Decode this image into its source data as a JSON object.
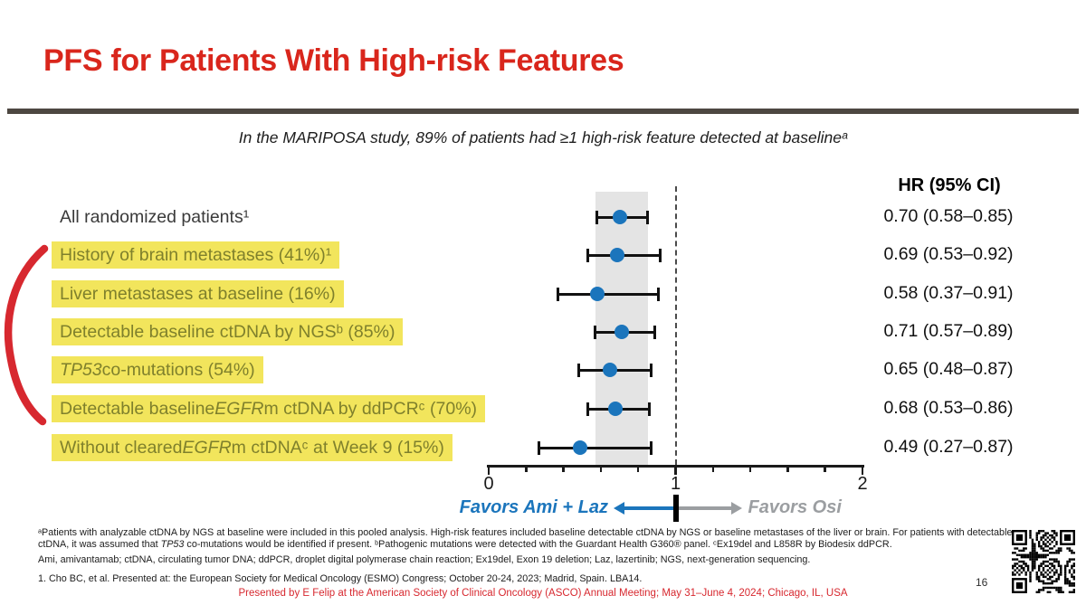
{
  "slide": {
    "title": "PFS for Patients With High-risk Features",
    "page_number": "16"
  },
  "subtitle": "In the MARIPOSA study, 89% of patients had ≥1 high-risk feature detected at baselineᵃ",
  "colors": {
    "title_red": "#D9261C",
    "rule": "#4D4741",
    "highlight_bg": "#F2E55C",
    "highlight_text": "#7F802C",
    "dot_blue": "#1B75BC",
    "favors_gray": "#9B9EA1",
    "band_gray": "#E4E4E4",
    "annotation_red": "#D7282F"
  },
  "chart_data": {
    "type": "scatter",
    "subtype": "forest_plot",
    "hr_header": "HR (95% CI)",
    "xlim": [
      0,
      2
    ],
    "major_ticks": [
      0,
      1,
      2
    ],
    "minor_tick_step": 0.2,
    "reference_line": 1.0,
    "shaded_band": [
      0.57,
      0.85
    ],
    "favors_left": "Favors Ami + Laz",
    "favors_right": "Favors Osi",
    "rows": [
      {
        "label": [
          {
            "t": "All randomized patients¹"
          }
        ],
        "highlight": false,
        "hr": 0.7,
        "ci": [
          0.58,
          0.85
        ],
        "hr_text": "0.70 (0.58–0.85)"
      },
      {
        "label": [
          {
            "t": "History of brain metastases (41%)¹"
          }
        ],
        "highlight": true,
        "hr": 0.69,
        "ci": [
          0.53,
          0.92
        ],
        "hr_text": "0.69 (0.53–0.92)"
      },
      {
        "label": [
          {
            "t": "Liver metastases at baseline (16%)"
          }
        ],
        "highlight": true,
        "hr": 0.58,
        "ci": [
          0.37,
          0.91
        ],
        "hr_text": "0.58 (0.37–0.91)"
      },
      {
        "label": [
          {
            "t": "Detectable baseline ctDNA by NGSᵇ (85%)"
          }
        ],
        "highlight": true,
        "hr": 0.71,
        "ci": [
          0.57,
          0.89
        ],
        "hr_text": "0.71 (0.57–0.89)"
      },
      {
        "label": [
          {
            "t": "TP53",
            "i": true
          },
          {
            "t": " co-mutations (54%)"
          }
        ],
        "highlight": true,
        "hr": 0.65,
        "ci": [
          0.48,
          0.87
        ],
        "hr_text": "0.65 (0.48–0.87)"
      },
      {
        "label": [
          {
            "t": "Detectable baseline "
          },
          {
            "t": "EGFR",
            "i": true
          },
          {
            "t": "m ctDNA by ddPCRᶜ (70%)"
          }
        ],
        "highlight": true,
        "hr": 0.68,
        "ci": [
          0.53,
          0.86
        ],
        "hr_text": "0.68 (0.53–0.86)"
      },
      {
        "label": [
          {
            "t": "Without cleared "
          },
          {
            "t": "EGFR",
            "i": true
          },
          {
            "t": "m ctDNAᶜ at Week 9 (15%)"
          }
        ],
        "highlight": true,
        "hr": 0.49,
        "ci": [
          0.27,
          0.87
        ],
        "hr_text": "0.49 (0.27–0.87)"
      }
    ]
  },
  "footnotes": {
    "line1": [
      {
        "t": "ᵃPatients with analyzable ctDNA by NGS at baseline were included in this pooled analysis. High-risk features included baseline detectable ctDNA by NGS or baseline metastases of the liver or brain. For patients with detectable"
      }
    ],
    "line2": [
      {
        "t": "ctDNA, it was assumed that "
      },
      {
        "t": "TP53",
        "i": true
      },
      {
        "t": " co-mutations would be identified if present. ᵇPathogenic mutations were detected with the Guardant Health G360® panel. ᶜEx19del and L858R by Biodesix ddPCR."
      }
    ],
    "abbreviations": [
      {
        "t": "Ami, amivantamab; ctDNA, circulating tumor DNA; ddPCR, droplet digital polymerase chain reaction; Ex19del, Exon 19 deletion; Laz, lazertinib; NGS, next-generation sequencing."
      }
    ],
    "citation": [
      {
        "t": "1. Cho BC, et al. Presented at: the European Society for Medical Oncology (ESMO) Congress; October 20-24, 2023; Madrid, Spain. LBA14."
      }
    ]
  },
  "footer": "Presented by E Felip at the American Society of Clinical Oncology (ASCO) Annual Meeting; May 31–June 4, 2024; Chicago, IL, USA"
}
